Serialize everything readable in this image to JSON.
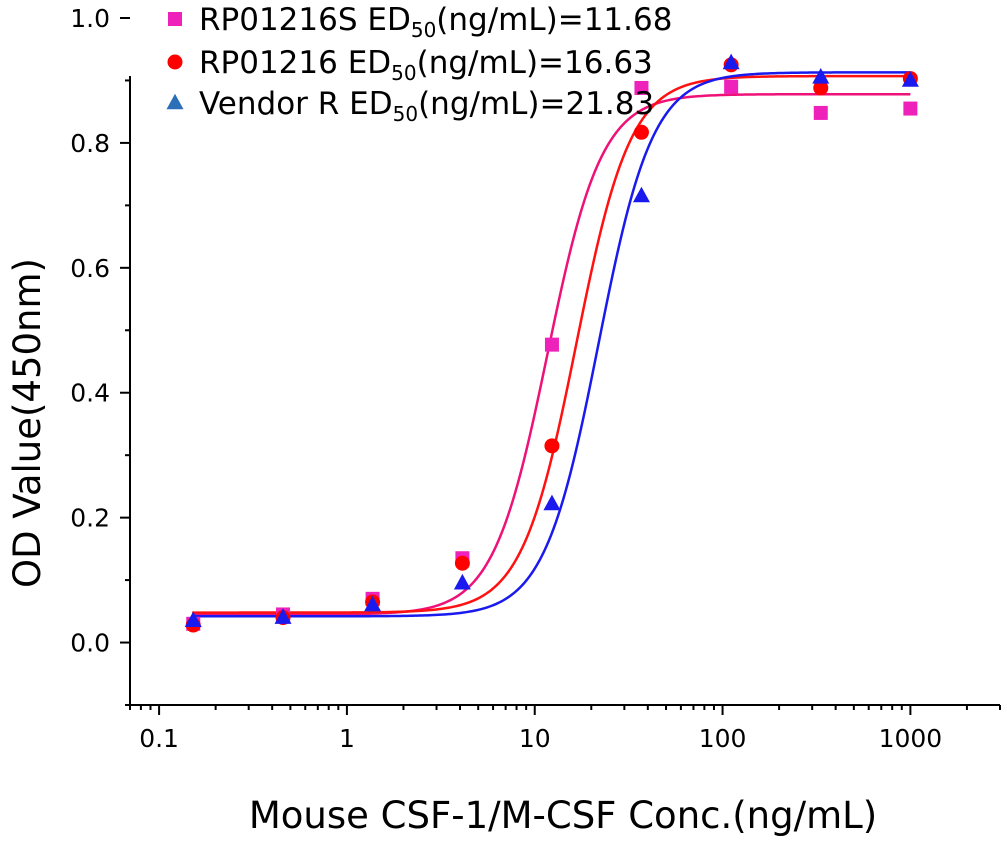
{
  "chart_data": {
    "type": "scatter",
    "xlabel": "Mouse CSF-1/M-CSF Conc.(ng/mL)",
    "ylabel": "OD Value(450nm)",
    "x_scale": "log",
    "xlim": [
      0.07,
      3000
    ],
    "ylim": [
      -0.1,
      1.0
    ],
    "x_ticks": [
      {
        "value": 0.1,
        "label": "0.1"
      },
      {
        "value": 1,
        "label": "1"
      },
      {
        "value": 10,
        "label": "10"
      },
      {
        "value": 100,
        "label": "100"
      },
      {
        "value": 1000,
        "label": "1000"
      }
    ],
    "y_ticks": [
      {
        "value": 0.0,
        "label": "0.0"
      },
      {
        "value": 0.2,
        "label": "0.2"
      },
      {
        "value": 0.4,
        "label": "0.4"
      },
      {
        "value": 0.6,
        "label": "0.6"
      },
      {
        "value": 0.8,
        "label": "0.8"
      },
      {
        "value": 1.0,
        "label": "1.0"
      }
    ],
    "legend_position": "top-left",
    "series": [
      {
        "name": "RP01216S ED",
        "legend_sub": "50",
        "legend_rest": "(ng/mL)=11.68",
        "marker": "square",
        "marker_color": "#ee22bb",
        "line_color": "#ee1177",
        "fit": {
          "bottom": 0.045,
          "top": 0.878,
          "ec50": 11.68,
          "hill": 3.0
        },
        "points": [
          {
            "x": 0.152,
            "y": 0.03
          },
          {
            "x": 0.457,
            "y": 0.045
          },
          {
            "x": 1.37,
            "y": 0.07
          },
          {
            "x": 4.12,
            "y": 0.135
          },
          {
            "x": 12.35,
            "y": 0.477
          },
          {
            "x": 37.0,
            "y": 0.888
          },
          {
            "x": 111.1,
            "y": 0.89
          },
          {
            "x": 333.3,
            "y": 0.848
          },
          {
            "x": 1000,
            "y": 0.855
          }
        ]
      },
      {
        "name": "RP01216 ED",
        "legend_sub": "50",
        "legend_rest": "(ng/mL)=16.63",
        "marker": "circle",
        "marker_color": "#ff0000",
        "line_color": "#ff1111",
        "fit": {
          "bottom": 0.048,
          "top": 0.907,
          "ec50": 16.63,
          "hill": 3.0
        },
        "points": [
          {
            "x": 0.152,
            "y": 0.028
          },
          {
            "x": 0.457,
            "y": 0.04
          },
          {
            "x": 1.37,
            "y": 0.065
          },
          {
            "x": 4.12,
            "y": 0.127
          },
          {
            "x": 12.35,
            "y": 0.315
          },
          {
            "x": 37.0,
            "y": 0.817
          },
          {
            "x": 111.1,
            "y": 0.925
          },
          {
            "x": 333.3,
            "y": 0.888
          },
          {
            "x": 1000,
            "y": 0.903
          }
        ]
      },
      {
        "name": "Vendor R ED",
        "legend_sub": "50",
        "legend_rest": "(ng/mL)=21.83",
        "marker": "triangle",
        "marker_color": "#2b6fb8",
        "line_color": "#1a1aee",
        "fit": {
          "bottom": 0.042,
          "top": 0.913,
          "ec50": 21.83,
          "hill": 3.0
        },
        "points": [
          {
            "x": 0.152,
            "y": 0.035
          },
          {
            "x": 0.457,
            "y": 0.04
          },
          {
            "x": 1.37,
            "y": 0.06
          },
          {
            "x": 4.12,
            "y": 0.095
          },
          {
            "x": 12.35,
            "y": 0.222
          },
          {
            "x": 37.0,
            "y": 0.715
          },
          {
            "x": 111.1,
            "y": 0.928
          },
          {
            "x": 333.3,
            "y": 0.905
          },
          {
            "x": 1000,
            "y": 0.9
          }
        ]
      }
    ]
  }
}
